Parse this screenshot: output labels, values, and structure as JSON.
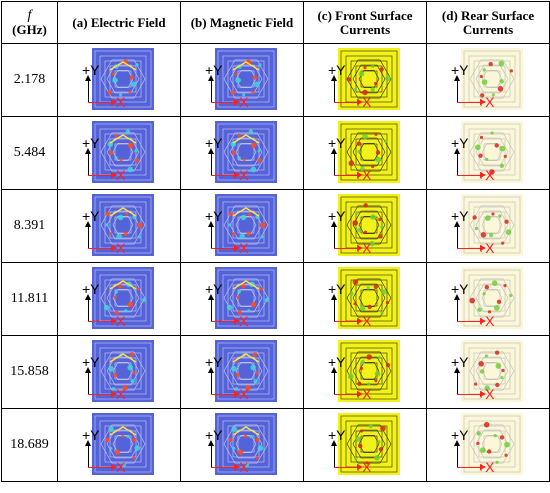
{
  "header": {
    "freq_symbol": "f",
    "freq_unit": "(GHz)",
    "col_a": "(a) Electric Field",
    "col_b": "(b) Magnetic Field",
    "col_c": "(c) Front Surface Currents",
    "col_d": "(d) Rear Surface Currents"
  },
  "axes": {
    "y_label": "+Y",
    "x_label": "+X"
  },
  "rows": [
    {
      "freq": "2.178"
    },
    {
      "freq": "5.484"
    },
    {
      "freq": "8.391"
    },
    {
      "freq": "11.811"
    },
    {
      "freq": "15.858"
    },
    {
      "freq": "18.689"
    }
  ],
  "colors": {
    "field_bg": "#5563d9",
    "field_hot": "#ff4a1a",
    "field_warm": "#ffe040",
    "field_mid": "#3fd6d6",
    "current_front_bg": "#f2f21a",
    "current_rear_bg": "#fbf7d8",
    "current_hot": "#d8281c",
    "current_mid": "#6fcf3a",
    "axis_x": "#ff1f1f"
  }
}
